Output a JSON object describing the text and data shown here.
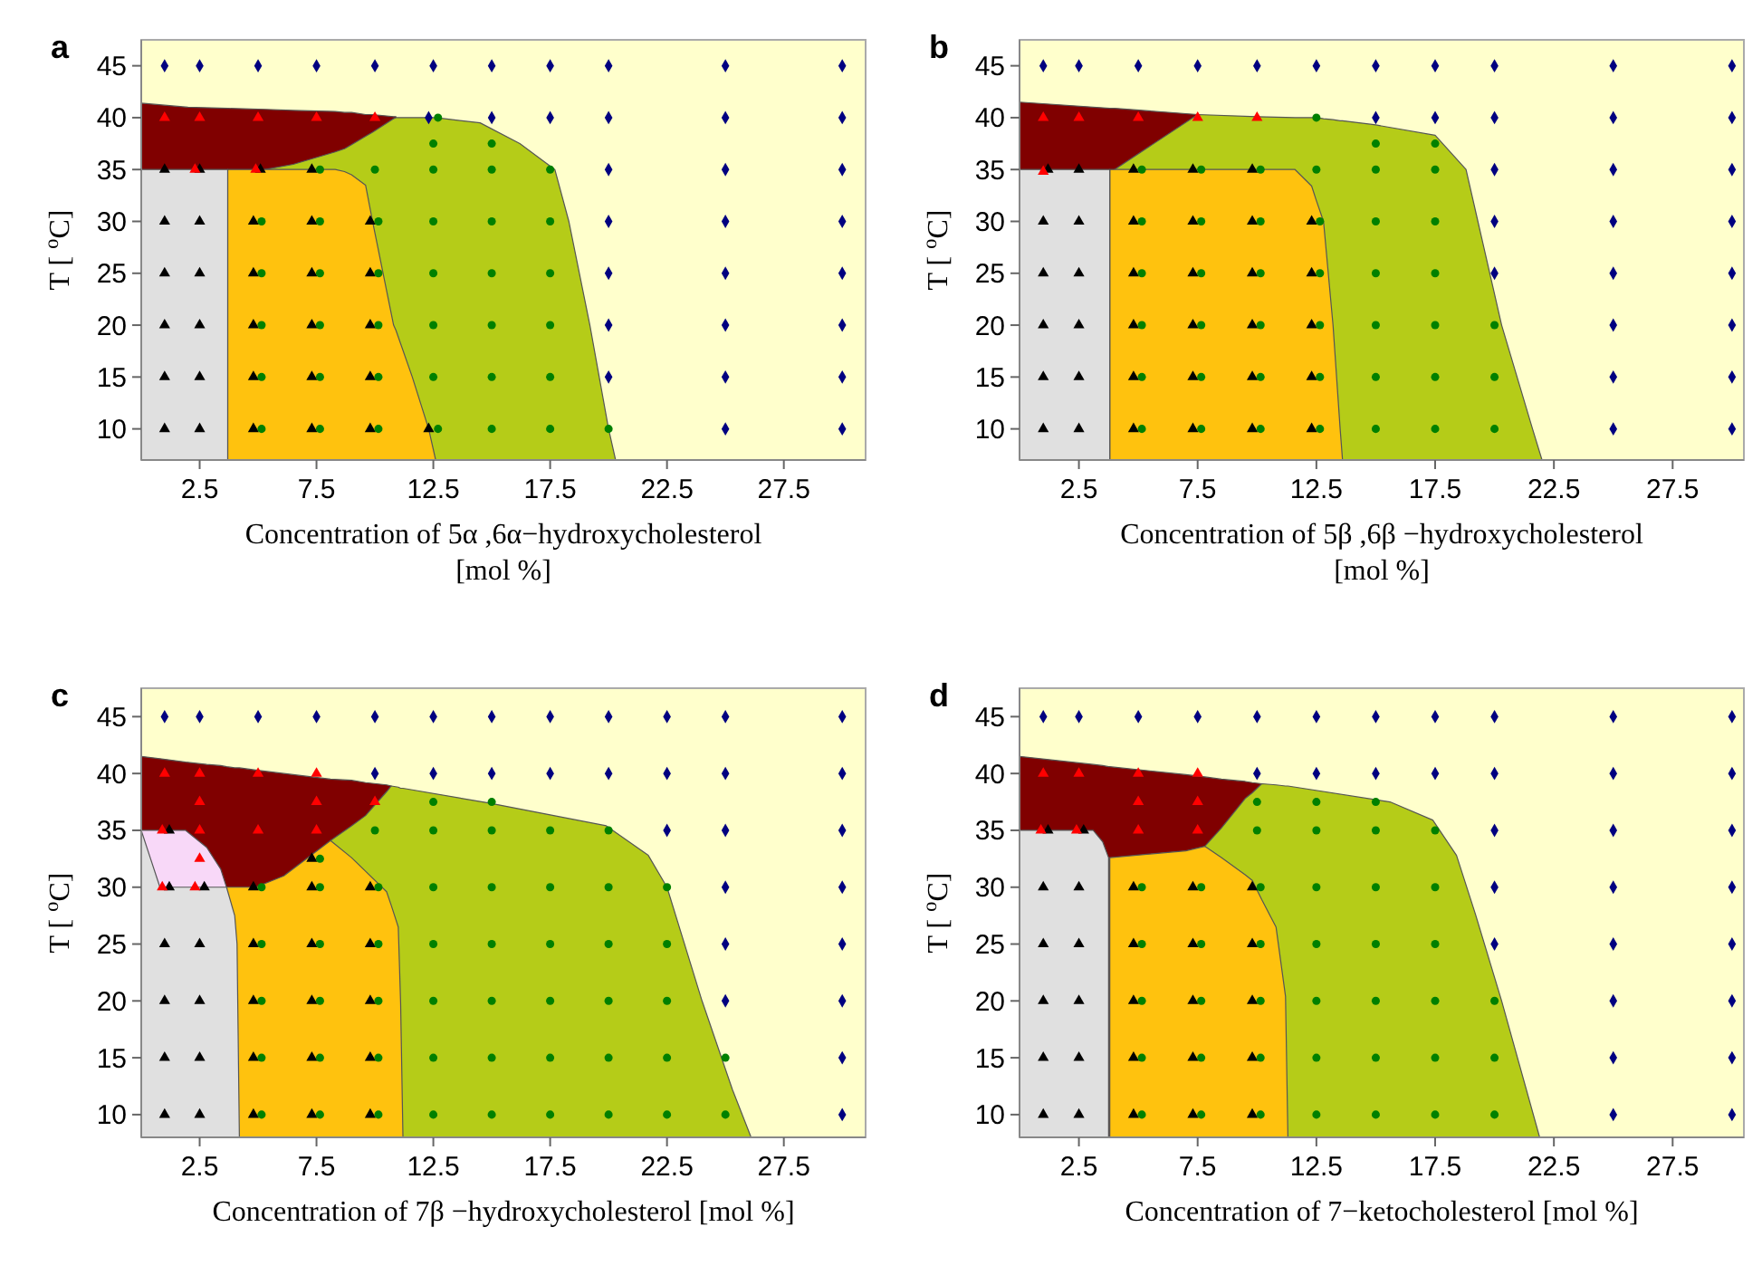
{
  "chart_data": [
    {
      "type": "scatter",
      "title": "a",
      "xlabel": "Concentration of 5α ,6α−hydroxycholesterol\n[mol %]",
      "ylabel": "T [ $^{o}$C]",
      "xlim": [
        0,
        31
      ],
      "ylim": [
        7,
        47.5
      ],
      "xticks": [
        2.5,
        7.5,
        12.5,
        17.5,
        22.5,
        27.5
      ],
      "yticks": [
        10,
        15,
        20,
        25,
        30,
        35,
        40,
        45
      ],
      "series": [
        {
          "type": "area",
          "color": "#800000",
          "x": [
            0,
            2,
            3.7,
            5.3,
            6.5,
            8.3,
            8.7,
            9.0,
            9.6,
            9.9,
            10.8,
            10.9
          ],
          "values": [
            41.4,
            41,
            40.9,
            40.8,
            40.7,
            40.6,
            40.5,
            40.5,
            40.3,
            40.3,
            40.1,
            40.1
          ]
        },
        {
          "type": "area",
          "color": "#b5cc18",
          "x": [
            5.3,
            6.5,
            8.3,
            8.7,
            9.0,
            9.6,
            9.9,
            10.8,
            10.9,
            11.6,
            12.3,
            12.6,
            14.5,
            16.2,
            17.7,
            18.3,
            19.2,
            20.0,
            20.3
          ],
          "values": [
            35,
            35.5,
            36.7,
            37,
            37.4,
            38.2,
            38.6,
            39.9,
            40,
            40,
            40,
            40,
            39.5,
            37.5,
            35,
            30,
            20,
            10,
            7
          ]
        },
        {
          "type": "area",
          "color": "#ffc20e",
          "x": [
            3.7,
            5.3,
            6.5,
            8.3,
            8.7,
            9.0,
            9.6,
            9.9,
            10.8,
            10.9,
            11.6,
            12.3,
            12.6
          ],
          "values": [
            35,
            35,
            35,
            35,
            34.8,
            34.5,
            33.5,
            30,
            20,
            19.5,
            15,
            10,
            7
          ]
        },
        {
          "type": "area",
          "color": "#e0e0e0",
          "x": [
            0,
            2,
            3.7
          ],
          "values": [
            35,
            35,
            35
          ]
        },
        {
          "marker": "triangle",
          "color": "#000000",
          "x": [
            1,
            2.5,
            5.1,
            7.3,
            1,
            2.5,
            4.8,
            7.3,
            9.8,
            1,
            2.5,
            4.8,
            7.3,
            9.8,
            1,
            2.5,
            4.8,
            7.3,
            9.8,
            1,
            2.5,
            4.8,
            7.3,
            9.8,
            1,
            2.5,
            4.8,
            7.3,
            9.8,
            12.3
          ],
          "values": [
            35,
            35,
            35,
            35,
            30,
            30,
            30,
            30,
            30,
            25,
            25,
            25,
            25,
            25,
            20,
            20,
            20,
            20,
            20,
            15,
            15,
            15,
            15,
            15,
            10,
            10,
            10,
            10,
            10,
            10
          ]
        },
        {
          "marker": "circle",
          "color": "#008000",
          "x": [
            12.7,
            12.5,
            15,
            7.65,
            10,
            12.5,
            15,
            17.5,
            5.15,
            7.65,
            10.15,
            12.5,
            15,
            17.5,
            5.15,
            7.65,
            10.15,
            12.5,
            15,
            17.5,
            5.15,
            7.65,
            10.15,
            12.5,
            15,
            17.5,
            5.15,
            7.65,
            10.15,
            12.5,
            15,
            17.5,
            5.15,
            7.65,
            10.15,
            12.7,
            15,
            17.5,
            20
          ],
          "values": [
            40,
            37.5,
            37.5,
            35,
            35,
            35,
            35,
            35,
            30,
            30,
            30,
            30,
            30,
            30,
            25,
            25,
            25,
            25,
            25,
            25,
            20,
            20,
            20,
            20,
            20,
            20,
            15,
            15,
            15,
            15,
            15,
            15,
            10,
            10,
            10,
            10,
            10,
            10,
            10
          ]
        },
        {
          "marker": "diamond",
          "color": "#000080",
          "x": [
            1,
            2.5,
            5,
            7.5,
            10,
            12.5,
            15,
            17.5,
            20,
            25,
            30,
            12.3,
            15,
            17.5,
            20,
            25,
            30,
            20,
            25,
            30,
            20,
            25,
            30,
            20,
            25,
            30,
            20,
            25,
            30,
            20,
            25,
            30,
            25,
            30
          ],
          "values": [
            45,
            45,
            45,
            45,
            45,
            45,
            45,
            45,
            45,
            45,
            45,
            40,
            40,
            40,
            40,
            40,
            40,
            35,
            35,
            35,
            30,
            30,
            30,
            25,
            25,
            25,
            20,
            20,
            20,
            15,
            15,
            15,
            10,
            10
          ]
        },
        {
          "marker": "triangle",
          "color": "#ff0000",
          "x": [
            1,
            2.5,
            5,
            7.5,
            10,
            2.3,
            4.9
          ],
          "values": [
            40,
            40,
            40,
            40,
            40,
            35,
            35
          ]
        }
      ]
    },
    {
      "type": "scatter",
      "title": "b",
      "xlabel": "Concentration of 5β ,6β −hydroxycholesterol\n[mol %]",
      "ylabel": "T [ $^{o}$C]",
      "xlim": [
        0,
        30.5
      ],
      "ylim": [
        7,
        47.5
      ],
      "xticks": [
        2.5,
        7.5,
        12.5,
        17.5,
        22.5,
        27.5
      ],
      "yticks": [
        10,
        15,
        20,
        25,
        30,
        35,
        40,
        45
      ],
      "series": [
        {
          "type": "area",
          "color": "#800000",
          "x": [
            0,
            3.8,
            4.0,
            7.5
          ],
          "values": [
            41.5,
            40.9,
            40.9,
            40.3
          ]
        },
        {
          "type": "area",
          "color": "#b5cc18",
          "x": [
            4.0,
            7.5,
            10,
            11.6,
            12.3,
            12.5,
            12.8,
            13.2,
            13.5,
            13.6,
            15,
            17.5,
            18.8,
            19.3,
            20.3,
            21.6,
            22.0
          ],
          "values": [
            35,
            40.3,
            40.1,
            40,
            40,
            40,
            39.9,
            39.8,
            39.7,
            39.7,
            39.3,
            38.3,
            35,
            30,
            20,
            10,
            7
          ]
        },
        {
          "type": "area",
          "color": "#ffc20e",
          "x": [
            3.8,
            11.6,
            12.3,
            12.5,
            12.8,
            13.2,
            13.5,
            13.6
          ],
          "values": [
            35,
            35,
            33.4,
            32,
            30,
            20,
            10,
            7
          ]
        },
        {
          "type": "area",
          "color": "#e0e0e0",
          "x": [
            0,
            3.8
          ],
          "values": [
            35,
            35
          ]
        },
        {
          "marker": "triangle",
          "color": "#000000",
          "x": [
            1.2,
            2.5,
            4.8,
            7.3,
            9.8,
            1,
            2.5,
            4.8,
            7.3,
            9.8,
            12.3,
            1,
            2.5,
            4.8,
            7.3,
            9.8,
            12.3,
            1,
            2.5,
            4.8,
            7.3,
            9.8,
            12.3,
            1,
            2.5,
            4.8,
            7.3,
            9.8,
            12.3,
            1,
            2.5,
            4.8,
            7.3,
            9.8,
            12.3
          ],
          "values": [
            35,
            35,
            35,
            35,
            35,
            30,
            30,
            30,
            30,
            30,
            30,
            25,
            25,
            25,
            25,
            25,
            25,
            20,
            20,
            20,
            20,
            20,
            20,
            15,
            15,
            15,
            15,
            15,
            15,
            10,
            10,
            10,
            10,
            10,
            10
          ]
        },
        {
          "marker": "circle",
          "color": "#008000",
          "x": [
            12.5,
            15,
            17.5,
            5.15,
            7.65,
            10.15,
            12.5,
            15,
            17.5,
            5.15,
            7.65,
            10.15,
            12.65,
            15,
            17.5,
            5.15,
            7.65,
            10.15,
            12.65,
            15,
            17.5,
            5.15,
            7.65,
            10.15,
            12.65,
            15,
            17.5,
            20,
            5.15,
            7.65,
            10.15,
            12.65,
            15,
            17.5,
            20,
            5.15,
            7.65,
            10.15,
            12.65,
            15,
            17.5,
            20
          ],
          "values": [
            40,
            37.5,
            37.5,
            35,
            35,
            35,
            35,
            35,
            35,
            30,
            30,
            30,
            30,
            30,
            30,
            25,
            25,
            25,
            25,
            25,
            25,
            20,
            20,
            20,
            20,
            20,
            20,
            20,
            15,
            15,
            15,
            15,
            15,
            15,
            15,
            10,
            10,
            10,
            10,
            10,
            10,
            10
          ]
        },
        {
          "marker": "diamond",
          "color": "#000080",
          "x": [
            1,
            2.5,
            5,
            7.5,
            10,
            12.5,
            15,
            17.5,
            20,
            25,
            30,
            15,
            17.5,
            20,
            25,
            30,
            20,
            25,
            30,
            20,
            25,
            30,
            20,
            25,
            30,
            25,
            30,
            25,
            30,
            25,
            30
          ],
          "values": [
            45,
            45,
            45,
            45,
            45,
            45,
            45,
            45,
            45,
            45,
            45,
            40,
            40,
            40,
            40,
            40,
            35,
            35,
            35,
            30,
            30,
            30,
            25,
            25,
            25,
            20,
            20,
            15,
            15,
            10,
            10
          ]
        },
        {
          "marker": "triangle",
          "color": "#ff0000",
          "x": [
            1,
            2.5,
            5,
            7.5,
            10,
            1
          ],
          "values": [
            40,
            40,
            40,
            40,
            40,
            34.8
          ]
        }
      ]
    },
    {
      "type": "scatter",
      "title": "c",
      "xlabel": "Concentration of 7β −hydroxycholesterol [mol %]",
      "ylabel": "T [ $^{o}$C]",
      "xlim": [
        0,
        31
      ],
      "ylim": [
        8,
        47.5
      ],
      "xticks": [
        2.5,
        7.5,
        12.5,
        17.5,
        22.5,
        27.5
      ],
      "yticks": [
        10,
        15,
        20,
        25,
        30,
        35,
        40,
        45
      ],
      "series": [
        {
          "type": "area",
          "color": "#800000",
          "x": [
            0,
            0.4,
            0.8,
            1.9,
            2.8,
            3.4,
            3.65,
            4.0,
            4.1,
            4.2,
            4.9,
            6.1,
            8.1,
            9.0,
            9.6,
            10.5,
            10.7
          ],
          "values": [
            41.5,
            41.4,
            41.3,
            41.0,
            40.8,
            40.7,
            40.6,
            40.5,
            40.5,
            40.5,
            40.3,
            40.0,
            39.5,
            39.4,
            39.2,
            39.0,
            38.9
          ]
        },
        {
          "type": "area",
          "color": "#b5cc18",
          "x": [
            8.1,
            9.0,
            9.6,
            10.5,
            10.7,
            11.0,
            11.1,
            11.2,
            14.9,
            19.9,
            21.7,
            22.5,
            24.0,
            25.3,
            26.1
          ],
          "values": [
            34.1,
            35.4,
            36.3,
            38.4,
            38.9,
            38.8,
            38.7,
            38.7,
            37.4,
            35.4,
            32.8,
            30,
            20,
            12.2,
            8
          ]
        },
        {
          "type": "area",
          "color": "#f8d8f8",
          "x": [
            0,
            0.4,
            0.8,
            1.9,
            2.8,
            3.4,
            3.65
          ],
          "values": [
            35,
            35,
            35,
            35,
            33.5,
            31.6,
            30
          ]
        },
        {
          "type": "area",
          "color": "#ffc20e",
          "x": [
            3.65,
            4.0,
            4.1,
            4.2,
            4.9,
            6.1,
            8.1,
            9.0,
            9.6,
            10.5,
            10.7,
            11.0,
            11.1,
            11.2
          ],
          "values": [
            30,
            30,
            30,
            30,
            30,
            31,
            34.1,
            32.6,
            31.4,
            29.6,
            28.4,
            26.5,
            19.8,
            8
          ]
        },
        {
          "type": "area",
          "color": "#e0e0e0",
          "x": [
            0,
            0.4,
            0.8,
            1.9,
            2.8,
            3.4,
            3.65,
            4.0,
            4.1,
            4.2
          ],
          "values": [
            35,
            32.5,
            30,
            30,
            30,
            30,
            30,
            27.5,
            25,
            8
          ]
        },
        {
          "marker": "triangle",
          "color": "#000000",
          "x": [
            1.2,
            7.3,
            1.2,
            2.7,
            4.8,
            7.3,
            9.8,
            1,
            2.5,
            4.8,
            7.3,
            9.8,
            1,
            2.5,
            4.8,
            7.3,
            9.8,
            1,
            2.5,
            4.8,
            7.3,
            9.8,
            1,
            2.5,
            4.8,
            7.3,
            9.8
          ],
          "values": [
            35,
            32.5,
            30,
            30,
            30,
            30,
            30,
            25,
            25,
            25,
            25,
            25,
            20,
            20,
            20,
            20,
            20,
            15,
            15,
            15,
            15,
            15,
            10,
            10,
            10,
            10,
            10
          ]
        },
        {
          "marker": "circle",
          "color": "#008000",
          "x": [
            12.5,
            15,
            10,
            12.5,
            15,
            17.5,
            20,
            7.65,
            5.15,
            7.65,
            10.15,
            12.5,
            15,
            17.5,
            20,
            22.5,
            5.15,
            7.65,
            10.15,
            12.5,
            15,
            17.5,
            20,
            22.5,
            5.15,
            7.65,
            10.15,
            12.5,
            15,
            17.5,
            20,
            22.5,
            5.15,
            7.65,
            10.15,
            12.5,
            15,
            17.5,
            20,
            22.5,
            25,
            5.15,
            7.65,
            10.15,
            12.5,
            15,
            17.5,
            20,
            22.5,
            25
          ],
          "values": [
            37.5,
            37.5,
            35,
            35,
            35,
            35,
            35,
            32.5,
            30,
            30,
            30,
            30,
            30,
            30,
            30,
            30,
            25,
            25,
            25,
            25,
            25,
            25,
            25,
            25,
            20,
            20,
            20,
            20,
            20,
            20,
            20,
            20,
            15,
            15,
            15,
            15,
            15,
            15,
            15,
            15,
            15,
            10,
            10,
            10,
            10,
            10,
            10,
            10,
            10,
            10
          ]
        },
        {
          "marker": "diamond",
          "color": "#000080",
          "x": [
            1,
            2.5,
            5,
            7.5,
            10,
            12.5,
            15,
            17.5,
            20,
            22.5,
            25,
            30,
            10,
            12.5,
            15,
            17.5,
            20,
            22.5,
            25,
            30,
            22.5,
            25,
            30,
            25,
            30,
            25,
            30,
            25,
            30,
            30,
            30
          ],
          "values": [
            45,
            45,
            45,
            45,
            45,
            45,
            45,
            45,
            45,
            45,
            45,
            45,
            40,
            40,
            40,
            40,
            40,
            40,
            40,
            40,
            35,
            35,
            35,
            30,
            30,
            25,
            25,
            20,
            20,
            15,
            10
          ]
        },
        {
          "marker": "triangle",
          "color": "#ff0000",
          "x": [
            1,
            2.5,
            5,
            7.5,
            2.5,
            7.5,
            10,
            0.9,
            2.5,
            5,
            7.5,
            2.5,
            0.9,
            2.3
          ],
          "values": [
            40,
            40,
            40,
            40,
            37.5,
            37.5,
            37.5,
            35,
            35,
            35,
            35,
            32.5,
            30,
            30
          ]
        }
      ]
    },
    {
      "type": "scatter",
      "title": "d",
      "xlabel": "Concentration of 7−ketocholesterol [mol %]",
      "ylabel": "T [ $^{o}$C]",
      "xlim": [
        0,
        30.5
      ],
      "ylim": [
        8,
        47.5
      ],
      "xticks": [
        2.5,
        7.5,
        12.5,
        17.5,
        22.5,
        27.5
      ],
      "yticks": [
        10,
        15,
        20,
        25,
        30,
        35,
        40,
        45
      ],
      "series": [
        {
          "type": "area",
          "color": "#800000",
          "x": [
            0,
            3.1,
            3.5,
            3.75,
            3.8,
            7.0,
            7.8,
            8.5,
            9.5,
            9.8,
            10.2
          ],
          "values": [
            41.5,
            40.8,
            40.7,
            40.6,
            40.6,
            39.9,
            39.7,
            39.5,
            39.3,
            39.2,
            39.1
          ]
        },
        {
          "type": "area",
          "color": "#b5cc18",
          "x": [
            7.8,
            8.5,
            9.5,
            9.8,
            10.2,
            10.8,
            11.2,
            11.3,
            15.6,
            17.4,
            18.4,
            19.2,
            20.3,
            21.9
          ],
          "values": [
            33.6,
            35.2,
            37.8,
            38.3,
            39.1,
            39.0,
            38.9,
            38.9,
            37.5,
            35.9,
            32.8,
            27.6,
            20,
            8
          ]
        },
        {
          "type": "area",
          "color": "#ffc20e",
          "x": [
            3.8,
            7.0,
            7.8,
            8.5,
            9.5,
            9.8,
            10.2,
            10.8,
            11.2,
            11.3
          ],
          "values": [
            32.6,
            33.2,
            33.6,
            32.6,
            31.1,
            30.6,
            28.9,
            26.5,
            20.4,
            8
          ]
        },
        {
          "type": "area",
          "color": "#e0e0e0",
          "x": [
            0,
            3.1,
            3.5,
            3.75
          ],
          "values": [
            35,
            35,
            34,
            32.6
          ]
        },
        {
          "marker": "triangle",
          "color": "#000000",
          "x": [
            1.2,
            2.7,
            1,
            2.5,
            4.8,
            7.3,
            9.8,
            1,
            2.5,
            4.8,
            7.3,
            9.8,
            1,
            2.5,
            4.8,
            7.3,
            9.8,
            1,
            2.5,
            4.8,
            7.3,
            9.8,
            1,
            2.5,
            4.8,
            7.3,
            9.8
          ],
          "values": [
            35,
            35,
            30,
            30,
            30,
            30,
            30,
            25,
            25,
            25,
            25,
            25,
            20,
            20,
            20,
            20,
            20,
            15,
            15,
            15,
            15,
            15,
            10,
            10,
            10,
            10,
            10
          ]
        },
        {
          "marker": "circle",
          "color": "#008000",
          "x": [
            10,
            12.5,
            15,
            10,
            12.5,
            15,
            17.5,
            5.15,
            7.65,
            10.15,
            12.5,
            15,
            17.5,
            5.15,
            7.65,
            10.15,
            12.5,
            15,
            17.5,
            5.15,
            7.65,
            10.15,
            12.5,
            15,
            17.5,
            20,
            5.15,
            7.65,
            10.15,
            12.5,
            15,
            17.5,
            20,
            5.15,
            7.65,
            10.15,
            12.5,
            15,
            17.5,
            20
          ],
          "values": [
            37.5,
            37.5,
            37.5,
            35,
            35,
            35,
            35,
            30,
            30,
            30,
            30,
            30,
            30,
            25,
            25,
            25,
            25,
            25,
            25,
            20,
            20,
            20,
            20,
            20,
            20,
            20,
            15,
            15,
            15,
            15,
            15,
            15,
            15,
            10,
            10,
            10,
            10,
            10,
            10,
            10
          ]
        },
        {
          "marker": "diamond",
          "color": "#000080",
          "x": [
            1,
            2.5,
            5,
            7.5,
            10,
            12.5,
            15,
            17.5,
            20,
            25,
            30,
            10,
            12.5,
            15,
            17.5,
            20,
            25,
            30,
            20,
            25,
            30,
            20,
            25,
            30,
            20,
            25,
            30,
            25,
            30,
            25,
            30,
            25,
            30
          ],
          "values": [
            45,
            45,
            45,
            45,
            45,
            45,
            45,
            45,
            45,
            45,
            45,
            40,
            40,
            40,
            40,
            40,
            40,
            40,
            35,
            35,
            35,
            30,
            30,
            30,
            25,
            25,
            25,
            20,
            20,
            15,
            15,
            10,
            10
          ]
        },
        {
          "marker": "triangle",
          "color": "#ff0000",
          "x": [
            1,
            2.5,
            5,
            7.5,
            5,
            7.5,
            0.9,
            2.4,
            5,
            7.5
          ],
          "values": [
            40,
            40,
            40,
            40,
            37.5,
            37.5,
            35,
            35,
            35,
            35
          ]
        }
      ]
    }
  ]
}
